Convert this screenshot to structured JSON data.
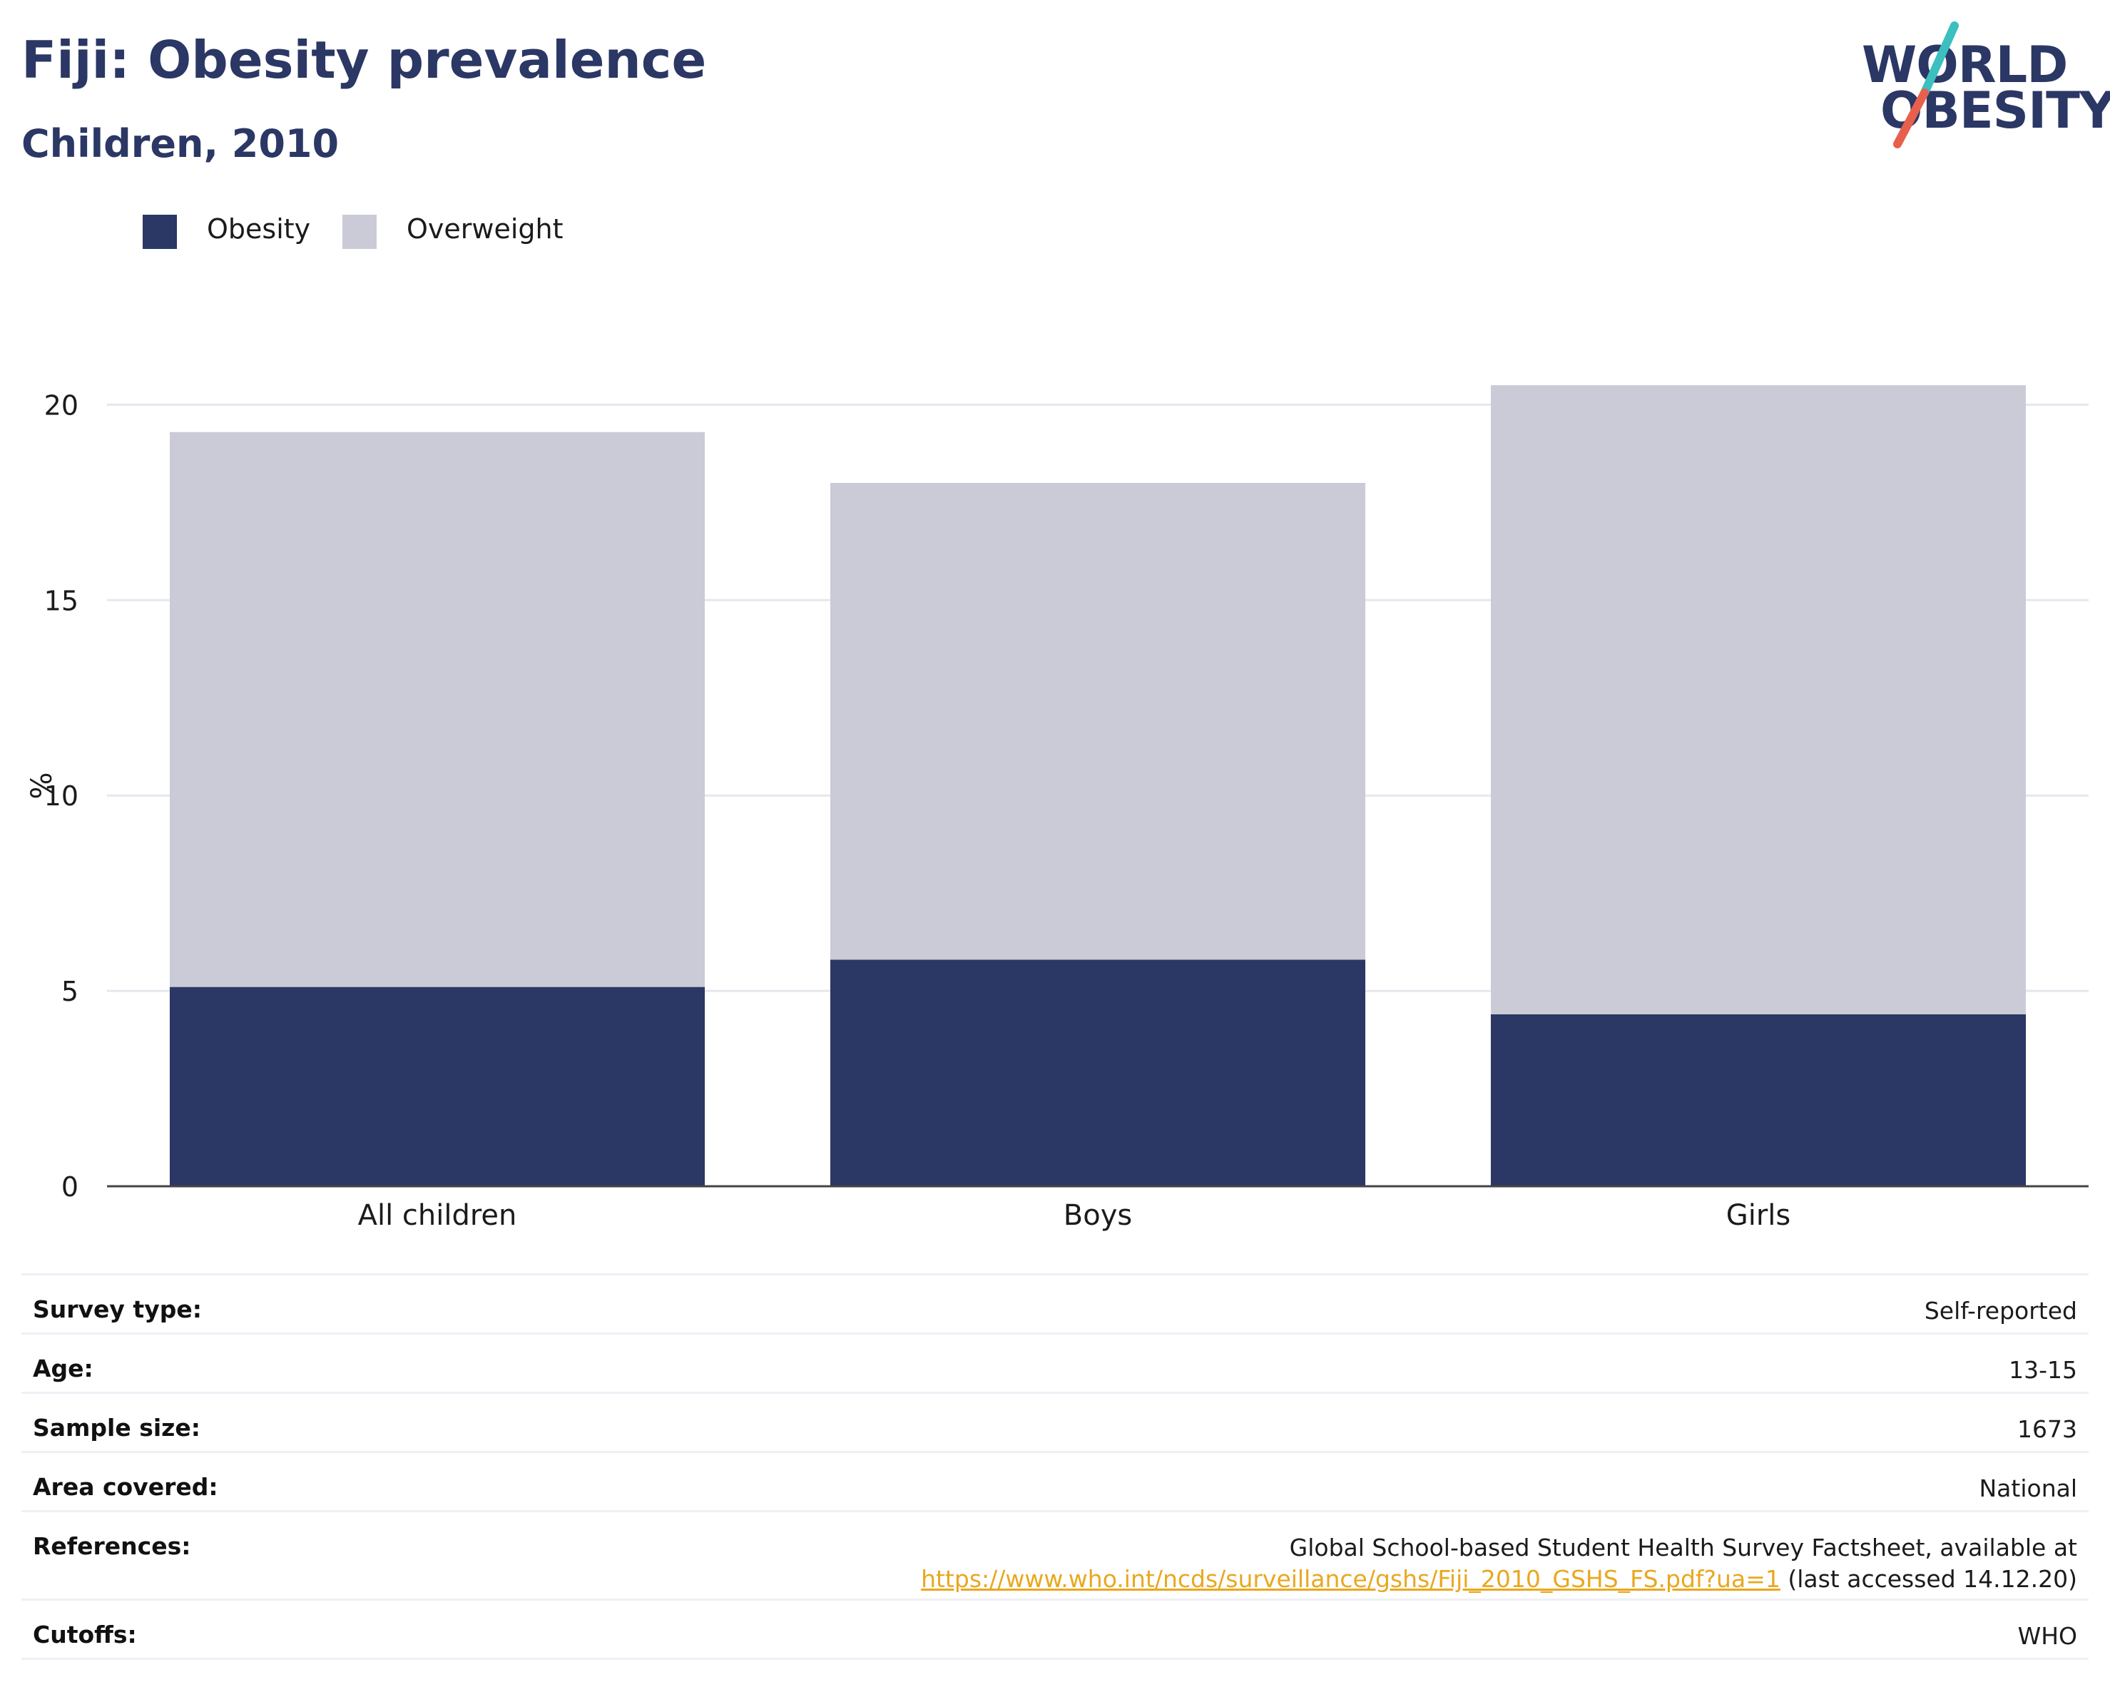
{
  "header": {
    "title": "Fiji: Obesity prevalence",
    "subtitle": "Children, 2010"
  },
  "logo": {
    "line1": "WORLD",
    "line2": "OBESITY",
    "colors": {
      "text": "#2b3764",
      "slash_top": "#3bbfbf",
      "slash_bottom": "#e8604c"
    }
  },
  "legend": [
    {
      "label": "Obesity",
      "color": "#2b3764"
    },
    {
      "label": "Overweight",
      "color": "#cacbd7"
    }
  ],
  "chart_data": {
    "type": "bar",
    "stacked": true,
    "categories": [
      "All children",
      "Boys",
      "Girls"
    ],
    "series": [
      {
        "name": "Obesity",
        "color": "#2b3764",
        "values": [
          5.1,
          5.8,
          4.4
        ]
      },
      {
        "name": "Overweight",
        "color": "#cacbd7",
        "values": [
          14.2,
          12.2,
          16.1
        ]
      }
    ],
    "ylabel": "%",
    "ylim": [
      0,
      20.5
    ],
    "yticks": [
      0,
      5,
      10,
      15,
      20
    ],
    "grid": true,
    "legend_position": "top-left"
  },
  "info": [
    {
      "key": "Survey type:",
      "value": "Self-reported"
    },
    {
      "key": "Age:",
      "value": "13-15"
    },
    {
      "key": "Sample size:",
      "value": "1673"
    },
    {
      "key": "Area covered:",
      "value": "National"
    },
    {
      "key": "References:",
      "value_line1": "Global School-based Student Health Survey Factsheet, available at",
      "link": "https://www.who.int/ncds/surveillance/gshs/Fiji_2010_GSHS_FS.pdf?ua=1",
      "value_suffix": " (last accessed 14.12.20)"
    },
    {
      "key": "Cutoffs:",
      "value": "WHO"
    }
  ]
}
